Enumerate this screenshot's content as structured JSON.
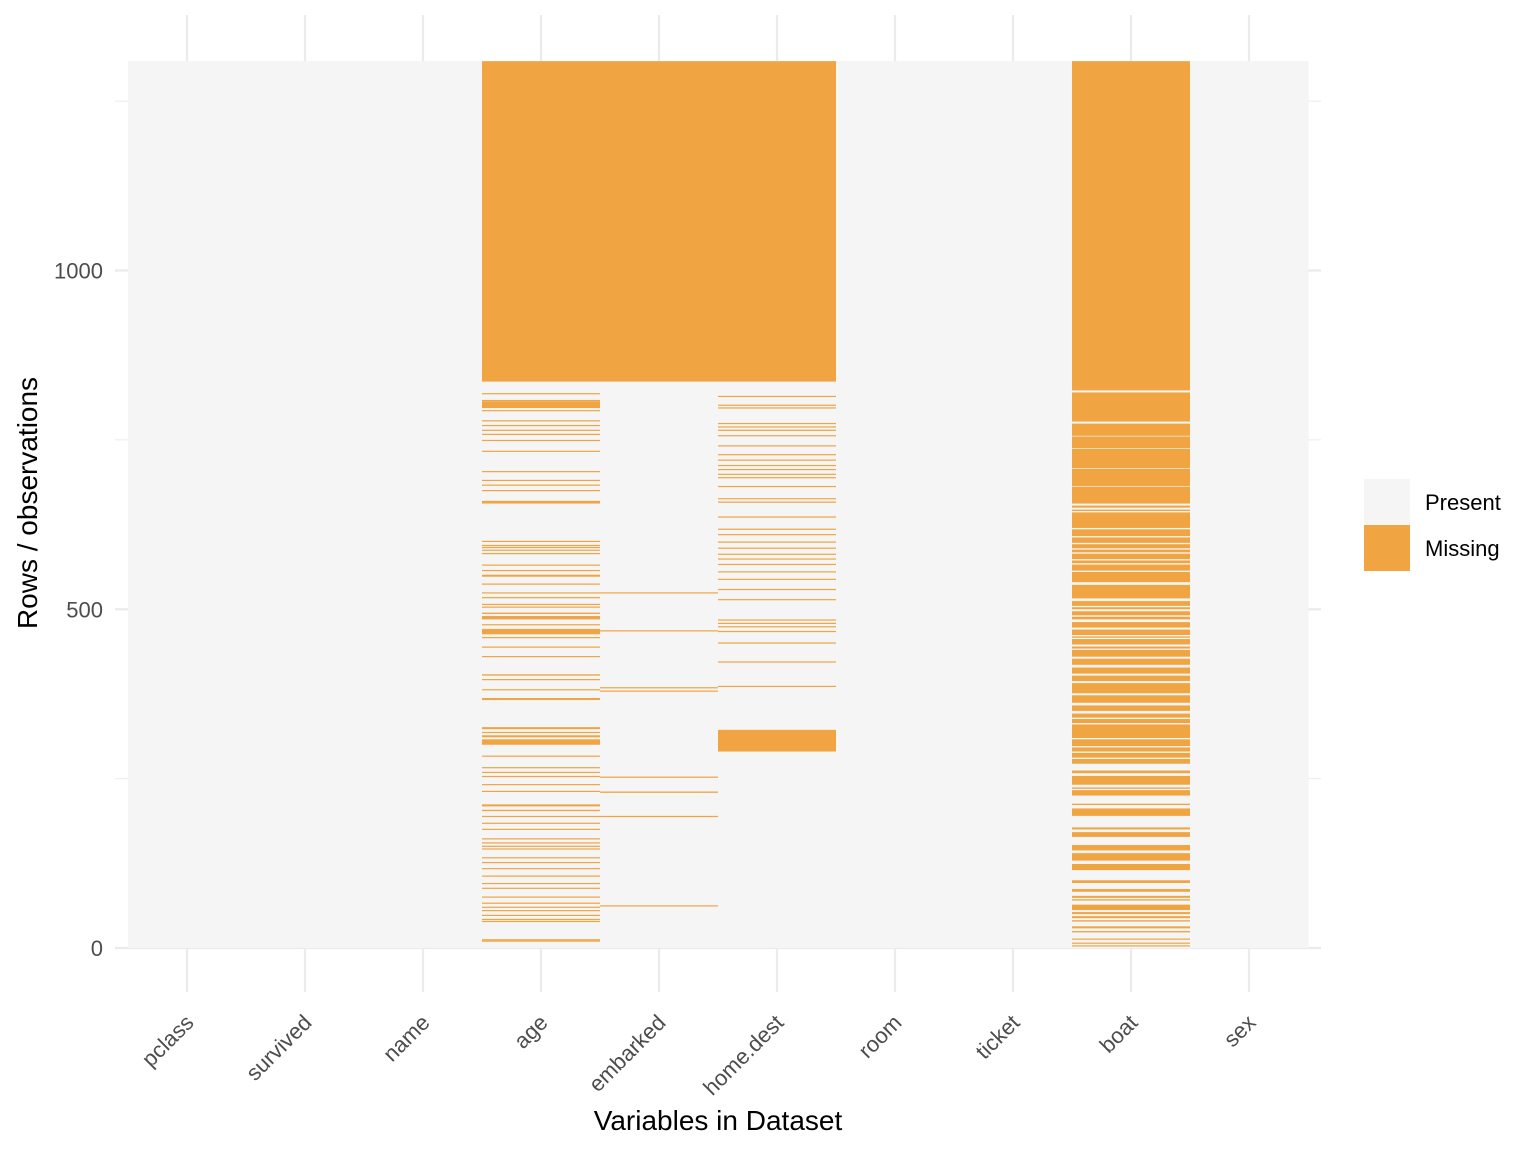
{
  "chart_data": {
    "type": "heatmap",
    "title": "",
    "xlabel": "Variables in Dataset",
    "ylabel": "Rows / observations",
    "n_rows": 1309,
    "ylim": [
      0,
      1309
    ],
    "y_ticks": [
      0,
      500,
      1000
    ],
    "y_tick_labels": [
      "0",
      "500",
      "1000"
    ],
    "y_minor_ticks": [
      250,
      750,
      1250
    ],
    "categories": [
      "pclass",
      "survived",
      "name",
      "age",
      "embarked",
      "home.dest",
      "room",
      "ticket",
      "boat",
      "sex"
    ],
    "legend": {
      "position": "right",
      "entries": [
        {
          "label": "Present",
          "color": "#f5f5f5"
        },
        {
          "label": "Missing",
          "color": "#f0a442"
        }
      ]
    },
    "colors": {
      "present": "#f5f5f5",
      "missing": "#f0a442",
      "grid": "#ebebeb"
    },
    "missing_ranges": {
      "pclass": [],
      "survived": [],
      "name": [],
      "age": [
        [
          836,
          1309
        ],
        [
          818,
          819
        ],
        [
          808,
          809
        ],
        [
          797,
          807
        ],
        [
          793,
          794
        ],
        [
          778,
          779
        ],
        [
          771,
          772
        ],
        [
          764,
          765
        ],
        [
          758,
          759
        ],
        [
          749,
          750
        ],
        [
          733,
          734
        ],
        [
          703,
          704
        ],
        [
          690,
          691
        ],
        [
          683,
          684
        ],
        [
          675,
          676
        ],
        [
          656,
          660
        ],
        [
          600,
          601
        ],
        [
          594,
          595
        ],
        [
          591,
          592
        ],
        [
          587,
          588
        ],
        [
          582,
          583
        ],
        [
          565,
          566
        ],
        [
          557,
          558
        ],
        [
          548,
          551
        ],
        [
          537,
          538
        ],
        [
          524,
          525
        ],
        [
          517,
          518
        ],
        [
          507,
          508
        ],
        [
          503,
          504
        ],
        [
          493,
          495
        ],
        [
          485,
          490
        ],
        [
          477,
          478
        ],
        [
          463,
          471
        ],
        [
          458,
          459
        ],
        [
          444,
          445
        ],
        [
          430,
          431
        ],
        [
          402,
          404
        ],
        [
          396,
          397
        ],
        [
          381,
          382
        ],
        [
          366,
          369
        ],
        [
          323,
          326
        ],
        [
          318,
          319
        ],
        [
          311,
          314
        ],
        [
          300,
          308
        ],
        [
          283,
          284
        ],
        [
          266,
          267
        ],
        [
          259,
          260
        ],
        [
          253,
          254
        ],
        [
          241,
          242
        ],
        [
          231,
          232
        ],
        [
          209,
          212
        ],
        [
          202,
          204
        ],
        [
          194,
          195
        ],
        [
          184,
          185
        ],
        [
          175,
          176
        ],
        [
          161,
          162
        ],
        [
          155,
          156
        ],
        [
          150,
          151
        ],
        [
          146,
          147
        ],
        [
          133,
          134
        ],
        [
          126,
          127
        ],
        [
          117,
          118
        ],
        [
          106,
          107
        ],
        [
          95,
          96
        ],
        [
          88,
          89
        ],
        [
          75,
          76
        ],
        [
          66,
          67
        ],
        [
          60,
          61
        ],
        [
          55,
          56
        ],
        [
          48,
          49
        ],
        [
          42,
          43
        ],
        [
          39,
          40
        ],
        [
          12,
          13
        ],
        [
          10,
          11
        ]
      ],
      "embarked": [
        [
          836,
          1309
        ],
        [
          524,
          525
        ],
        [
          468,
          469
        ],
        [
          384,
          385
        ],
        [
          379,
          380
        ],
        [
          252,
          253
        ],
        [
          229,
          231
        ],
        [
          194,
          195
        ],
        [
          62,
          63
        ]
      ],
      "home.dest": [
        [
          836,
          1309
        ],
        [
          814,
          815
        ],
        [
          801,
          802
        ],
        [
          797,
          798
        ],
        [
          774,
          775
        ],
        [
          769,
          770
        ],
        [
          764,
          765
        ],
        [
          756,
          757
        ],
        [
          741,
          742
        ],
        [
          728,
          729
        ],
        [
          720,
          721
        ],
        [
          712,
          713
        ],
        [
          706,
          707
        ],
        [
          699,
          700
        ],
        [
          694,
          695
        ],
        [
          681,
          682
        ],
        [
          663,
          664
        ],
        [
          658,
          659
        ],
        [
          636,
          637
        ],
        [
          618,
          619
        ],
        [
          610,
          611
        ],
        [
          599,
          600
        ],
        [
          590,
          591
        ],
        [
          581,
          582
        ],
        [
          574,
          575
        ],
        [
          566,
          567
        ],
        [
          555,
          556
        ],
        [
          544,
          545
        ],
        [
          529,
          530
        ],
        [
          514,
          515
        ],
        [
          484,
          485
        ],
        [
          479,
          480
        ],
        [
          474,
          475
        ],
        [
          467,
          468
        ],
        [
          450,
          451
        ],
        [
          422,
          423
        ],
        [
          386,
          387
        ],
        [
          290,
          322
        ]
      ],
      "boat": [
        [
          823,
          1309
        ],
        [
          777,
          820
        ],
        [
          756,
          774
        ],
        [
          738,
          755
        ],
        [
          708,
          737
        ],
        [
          682,
          707
        ],
        [
          656,
          681
        ],
        [
          650,
          653
        ],
        [
          645,
          647
        ],
        [
          620,
          643
        ],
        [
          608,
          618
        ],
        [
          598,
          606
        ],
        [
          590,
          596
        ],
        [
          584,
          588
        ],
        [
          574,
          582
        ],
        [
          568,
          572
        ],
        [
          557,
          566
        ],
        [
          540,
          555
        ],
        [
          516,
          536
        ],
        [
          505,
          512
        ],
        [
          500,
          503
        ],
        [
          491,
          497
        ],
        [
          485,
          489
        ],
        [
          473,
          481
        ],
        [
          462,
          470
        ],
        [
          458,
          460
        ],
        [
          448,
          456
        ],
        [
          442,
          445
        ],
        [
          430,
          440
        ],
        [
          418,
          427
        ],
        [
          405,
          414
        ],
        [
          394,
          402
        ],
        [
          376,
          391
        ],
        [
          362,
          373
        ],
        [
          350,
          358
        ],
        [
          340,
          346
        ],
        [
          332,
          338
        ],
        [
          310,
          330
        ],
        [
          298,
          308
        ],
        [
          290,
          296
        ],
        [
          281,
          288
        ],
        [
          272,
          279
        ],
        [
          258,
          262
        ],
        [
          241,
          254
        ],
        [
          235,
          237
        ],
        [
          225,
          233
        ],
        [
          211,
          213
        ],
        [
          195,
          206
        ],
        [
          175,
          178
        ],
        [
          164,
          171
        ],
        [
          144,
          152
        ],
        [
          129,
          140
        ],
        [
          115,
          124
        ],
        [
          96,
          100
        ],
        [
          83,
          87
        ],
        [
          74,
          77
        ],
        [
          70,
          72
        ],
        [
          56,
          64
        ],
        [
          50,
          53
        ],
        [
          44,
          47
        ],
        [
          39,
          41
        ],
        [
          29,
          32
        ],
        [
          23,
          25
        ],
        [
          13,
          14
        ],
        [
          7,
          8
        ],
        [
          3,
          4
        ]
      ],
      "room": [],
      "ticket": [],
      "sex": []
    }
  }
}
